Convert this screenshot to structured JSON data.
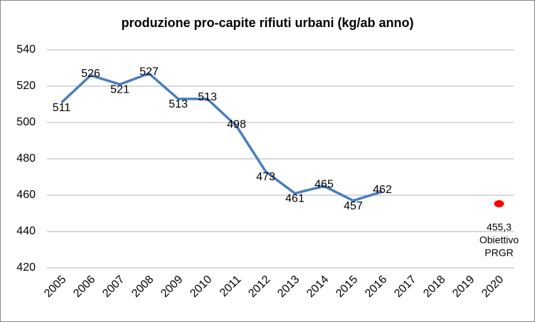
{
  "chart_data": {
    "type": "line",
    "title": "produzione pro-capite rifiuti urbani (kg/ab anno)",
    "categories": [
      "2005",
      "2006",
      "2007",
      "2008",
      "2009",
      "2010",
      "2011",
      "2012",
      "2013",
      "2014",
      "2015",
      "2016",
      "2017",
      "2018",
      "2019",
      "2020"
    ],
    "series": [
      {
        "style": "line",
        "color": "#4a7ebb",
        "values": [
          511,
          526,
          521,
          527,
          513,
          513,
          498,
          473,
          461,
          465,
          457,
          462,
          null,
          null,
          null,
          null
        ]
      },
      {
        "style": "dot",
        "color": "#ff0000",
        "values": [
          null,
          null,
          null,
          null,
          null,
          null,
          null,
          null,
          null,
          null,
          null,
          null,
          null,
          null,
          null,
          455.3
        ],
        "value_labels": [
          null,
          null,
          null,
          null,
          null,
          null,
          null,
          null,
          null,
          null,
          null,
          null,
          null,
          null,
          null,
          "455,3"
        ],
        "annotation": [
          "Obiettivo",
          "PRGR"
        ]
      }
    ],
    "ylim": [
      420,
      540
    ],
    "yticks": [
      420,
      440,
      460,
      480,
      500,
      520,
      540
    ],
    "grid": true
  }
}
